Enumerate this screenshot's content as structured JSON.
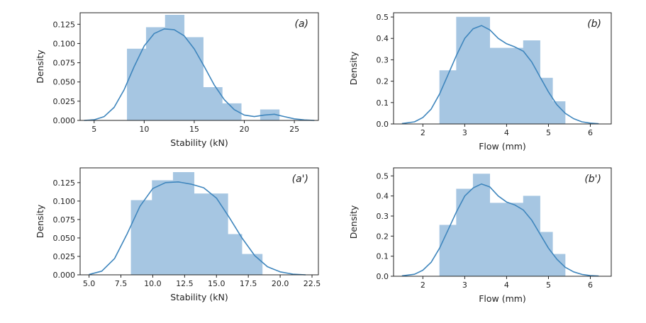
{
  "colors": {
    "bar_fill": "#a6c6e2",
    "bar_stroke": "#a6c6e2",
    "kde_line": "#3f86bd",
    "axes": "#222222"
  },
  "chart_data": [
    {
      "id": "a",
      "type": "bar",
      "panel_label": "(a)",
      "xlabel": "Stability (kN)",
      "ylabel": "Density",
      "xlim": [
        3.6,
        27.4
      ],
      "ylim": [
        0,
        0.14
      ],
      "xticks": [
        5,
        10,
        15,
        20,
        25
      ],
      "xtick_labels": [
        "5",
        "10",
        "15",
        "20",
        "25"
      ],
      "yticks": [
        0,
        0.025,
        0.05,
        0.075,
        0.1,
        0.125
      ],
      "ytick_labels": [
        "0.000",
        "0.025",
        "0.050",
        "0.075",
        "0.100",
        "0.125"
      ],
      "bins": [
        {
          "x0": 8.3,
          "x1": 10.2,
          "value": 0.093
        },
        {
          "x0": 10.2,
          "x1": 12.1,
          "value": 0.121
        },
        {
          "x0": 12.1,
          "x1": 14.0,
          "value": 0.137
        },
        {
          "x0": 14.0,
          "x1": 15.9,
          "value": 0.108
        },
        {
          "x0": 15.9,
          "x1": 17.8,
          "value": 0.043
        },
        {
          "x0": 17.8,
          "x1": 19.7,
          "value": 0.022
        },
        {
          "x0": 19.7,
          "x1": 21.6,
          "value": 0.0
        },
        {
          "x0": 21.6,
          "x1": 23.5,
          "value": 0.014
        }
      ],
      "kde": {
        "x": [
          4.0,
          5.0,
          6.0,
          7.0,
          8.0,
          9.0,
          10.0,
          11.0,
          12.0,
          13.0,
          14.0,
          15.0,
          16.0,
          17.0,
          18.0,
          19.0,
          20.0,
          21.0,
          22.0,
          23.0,
          24.0,
          25.0,
          26.0,
          27.0
        ],
        "y": [
          0.0,
          0.0008,
          0.005,
          0.017,
          0.04,
          0.07,
          0.097,
          0.113,
          0.119,
          0.118,
          0.11,
          0.093,
          0.07,
          0.046,
          0.027,
          0.014,
          0.007,
          0.005,
          0.007,
          0.008,
          0.005,
          0.002,
          0.0006,
          0.0
        ]
      }
    },
    {
      "id": "b",
      "type": "bar",
      "panel_label": "(b)",
      "xlabel": "Flow (mm)",
      "ylabel": "Density",
      "xlim": [
        1.3,
        6.5
      ],
      "ylim": [
        0,
        0.52
      ],
      "xticks": [
        2,
        3,
        4,
        5,
        6
      ],
      "xtick_labels": [
        "2",
        "3",
        "4",
        "5",
        "6"
      ],
      "yticks": [
        0,
        0.1,
        0.2,
        0.3,
        0.4,
        0.5
      ],
      "ytick_labels": [
        "0.0",
        "0.1",
        "0.2",
        "0.3",
        "0.4",
        "0.5"
      ],
      "bins": [
        {
          "x0": 2.4,
          "x1": 2.8,
          "value": 0.25
        },
        {
          "x0": 2.8,
          "x1": 3.6,
          "value": 0.5
        },
        {
          "x0": 3.6,
          "x1": 4.4,
          "value": 0.355
        },
        {
          "x0": 4.4,
          "x1": 4.8,
          "value": 0.39
        },
        {
          "x0": 4.8,
          "x1": 5.1,
          "value": 0.215
        },
        {
          "x0": 5.1,
          "x1": 5.4,
          "value": 0.105
        }
      ],
      "kde": {
        "x": [
          1.5,
          1.8,
          2.0,
          2.2,
          2.4,
          2.6,
          2.8,
          3.0,
          3.2,
          3.4,
          3.6,
          3.8,
          4.0,
          4.2,
          4.4,
          4.6,
          4.8,
          5.0,
          5.2,
          5.4,
          5.6,
          5.8,
          6.0,
          6.2
        ],
        "y": [
          0.002,
          0.01,
          0.03,
          0.07,
          0.14,
          0.23,
          0.32,
          0.4,
          0.445,
          0.46,
          0.44,
          0.4,
          0.375,
          0.36,
          0.34,
          0.29,
          0.22,
          0.15,
          0.09,
          0.05,
          0.025,
          0.01,
          0.004,
          0.001
        ]
      }
    },
    {
      "id": "a-prime",
      "type": "bar",
      "panel_label": "(a')",
      "xlabel": "Stability (kN)",
      "ylabel": "Density",
      "xlim": [
        4.3,
        23.0
      ],
      "ylim": [
        0,
        0.145
      ],
      "xticks": [
        5,
        7.5,
        10,
        12.5,
        15,
        17.5,
        20,
        22.5
      ],
      "xtick_labels": [
        "5.0",
        "7.5",
        "10.0",
        "12.5",
        "15.0",
        "17.5",
        "20.0",
        "22.5"
      ],
      "yticks": [
        0,
        0.025,
        0.05,
        0.075,
        0.1,
        0.125
      ],
      "ytick_labels": [
        "0.000",
        "0.025",
        "0.050",
        "0.075",
        "0.100",
        "0.125"
      ],
      "bins": [
        {
          "x0": 8.3,
          "x1": 9.95,
          "value": 0.101
        },
        {
          "x0": 9.95,
          "x1": 11.6,
          "value": 0.128
        },
        {
          "x0": 11.6,
          "x1": 13.25,
          "value": 0.139
        },
        {
          "x0": 13.25,
          "x1": 15.9,
          "value": 0.11
        },
        {
          "x0": 15.9,
          "x1": 17.0,
          "value": 0.055
        },
        {
          "x0": 17.0,
          "x1": 18.6,
          "value": 0.028
        }
      ],
      "kde": {
        "x": [
          5.0,
          6.0,
          7.0,
          8.0,
          9.0,
          10.0,
          11.0,
          12.0,
          13.0,
          14.0,
          15.0,
          16.0,
          17.0,
          18.0,
          19.0,
          20.0,
          21.0,
          22.0
        ],
        "y": [
          0.0005,
          0.005,
          0.022,
          0.056,
          0.093,
          0.117,
          0.125,
          0.126,
          0.123,
          0.118,
          0.104,
          0.078,
          0.05,
          0.026,
          0.011,
          0.004,
          0.001,
          0.0
        ]
      }
    },
    {
      "id": "b-prime",
      "type": "bar",
      "panel_label": "(b')",
      "xlabel": "Flow (mm)",
      "ylabel": "Density",
      "xlim": [
        1.3,
        6.5
      ],
      "ylim": [
        0,
        0.54
      ],
      "xticks": [
        2,
        3,
        4,
        5,
        6
      ],
      "xtick_labels": [
        "2",
        "3",
        "4",
        "5",
        "6"
      ],
      "yticks": [
        0,
        0.1,
        0.2,
        0.3,
        0.4,
        0.5
      ],
      "ytick_labels": [
        "0.0",
        "0.1",
        "0.2",
        "0.3",
        "0.4",
        "0.5"
      ],
      "bins": [
        {
          "x0": 2.4,
          "x1": 2.8,
          "value": 0.255
        },
        {
          "x0": 2.8,
          "x1": 3.2,
          "value": 0.435
        },
        {
          "x0": 3.2,
          "x1": 3.6,
          "value": 0.51
        },
        {
          "x0": 3.6,
          "x1": 4.4,
          "value": 0.365
        },
        {
          "x0": 4.4,
          "x1": 4.8,
          "value": 0.4
        },
        {
          "x0": 4.8,
          "x1": 5.1,
          "value": 0.22
        },
        {
          "x0": 5.1,
          "x1": 5.4,
          "value": 0.11
        }
      ],
      "kde": {
        "x": [
          1.5,
          1.8,
          2.0,
          2.2,
          2.4,
          2.6,
          2.8,
          3.0,
          3.2,
          3.4,
          3.6,
          3.8,
          4.0,
          4.2,
          4.4,
          4.6,
          4.8,
          5.0,
          5.2,
          5.4,
          5.6,
          5.8,
          6.0,
          6.2
        ],
        "y": [
          0.002,
          0.01,
          0.03,
          0.07,
          0.14,
          0.23,
          0.32,
          0.4,
          0.44,
          0.46,
          0.445,
          0.4,
          0.37,
          0.355,
          0.33,
          0.28,
          0.21,
          0.14,
          0.085,
          0.045,
          0.022,
          0.009,
          0.003,
          0.001
        ]
      }
    }
  ]
}
